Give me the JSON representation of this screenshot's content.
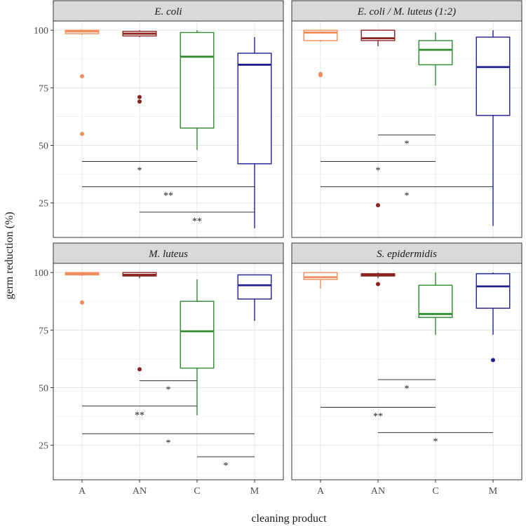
{
  "chart_data": {
    "type": "boxplot",
    "xlabel": "cleaning product",
    "ylabel": "germ reduction (%)",
    "categories": [
      "A",
      "AN",
      "C",
      "M"
    ],
    "colors": {
      "A": "#f28c5b",
      "AN": "#8b2323",
      "C": "#2e8b2e",
      "M": "#1f1f8f"
    },
    "ylim": [
      10,
      104
    ],
    "yticks": [
      25,
      50,
      75,
      100
    ],
    "panels": [
      {
        "title": "E. coli",
        "boxes": [
          {
            "cat": "A",
            "min": 98,
            "q1": 98.5,
            "median": 99.5,
            "q3": 100,
            "max": 100,
            "outliers": [
              80,
              55
            ]
          },
          {
            "cat": "AN",
            "min": 97,
            "q1": 97.5,
            "median": 98.5,
            "q3": 99.5,
            "max": 100,
            "outliers": [
              71,
              69
            ]
          },
          {
            "cat": "C",
            "min": 48,
            "q1": 57.5,
            "median": 88.5,
            "q3": 99,
            "max": 100,
            "outliers": []
          },
          {
            "cat": "M",
            "min": 14,
            "q1": 42,
            "median": 85,
            "q3": 90,
            "max": 97,
            "outliers": []
          }
        ],
        "significance": [
          {
            "from": "A",
            "to": "C",
            "y": 43,
            "label": "*"
          },
          {
            "from": "A",
            "to": "M",
            "y": 32,
            "label": "**"
          },
          {
            "from": "AN",
            "to": "M",
            "y": 21,
            "label": "**"
          }
        ]
      },
      {
        "title": "E. coli / M. luteus (1:2)",
        "boxes": [
          {
            "cat": "A",
            "min": 95,
            "q1": 95.5,
            "median": 99,
            "q3": 100,
            "max": 100,
            "outliers": [
              81,
              80.5
            ]
          },
          {
            "cat": "AN",
            "min": 93,
            "q1": 95.5,
            "median": 96.5,
            "q3": 100,
            "max": 100,
            "outliers": [
              24
            ]
          },
          {
            "cat": "C",
            "min": 76,
            "q1": 85,
            "median": 91.5,
            "q3": 95.5,
            "max": 99,
            "outliers": []
          },
          {
            "cat": "M",
            "min": 15,
            "q1": 63,
            "median": 84,
            "q3": 97,
            "max": 100,
            "outliers": []
          }
        ],
        "significance": [
          {
            "from": "AN",
            "to": "C",
            "y": 54.5,
            "label": "*"
          },
          {
            "from": "A",
            "to": "C",
            "y": 43,
            "label": "*"
          },
          {
            "from": "A",
            "to": "M",
            "y": 32,
            "label": "*"
          }
        ]
      },
      {
        "title": "M. luteus",
        "boxes": [
          {
            "cat": "A",
            "min": 98.5,
            "q1": 99,
            "median": 99.5,
            "q3": 100,
            "max": 100,
            "outliers": [
              87
            ]
          },
          {
            "cat": "AN",
            "min": 97.5,
            "q1": 98.5,
            "median": 99,
            "q3": 100,
            "max": 100,
            "outliers": [
              58
            ]
          },
          {
            "cat": "C",
            "min": 38,
            "q1": 58.5,
            "median": 74.5,
            "q3": 87.5,
            "max": 97,
            "outliers": []
          },
          {
            "cat": "M",
            "min": 79,
            "q1": 88.5,
            "median": 94.5,
            "q3": 99,
            "max": 99,
            "outliers": []
          }
        ],
        "significance": [
          {
            "from": "AN",
            "to": "C",
            "y": 53,
            "label": "*"
          },
          {
            "from": "A",
            "to": "C",
            "y": 42,
            "label": "**"
          },
          {
            "from": "A",
            "to": "M",
            "y": 30,
            "label": "*"
          },
          {
            "from": "C",
            "to": "M",
            "y": 20,
            "label": "*"
          }
        ]
      },
      {
        "title": "S. epidermidis",
        "boxes": [
          {
            "cat": "A",
            "min": 93,
            "q1": 97,
            "median": 98,
            "q3": 100,
            "max": 100,
            "outliers": []
          },
          {
            "cat": "AN",
            "min": 97.5,
            "q1": 98.5,
            "median": 99,
            "q3": 99.5,
            "max": 100,
            "outliers": [
              95
            ]
          },
          {
            "cat": "C",
            "min": 73,
            "q1": 80.5,
            "median": 82,
            "q3": 94.5,
            "max": 100,
            "outliers": []
          },
          {
            "cat": "M",
            "min": 73,
            "q1": 84.5,
            "median": 94,
            "q3": 99.5,
            "max": 100,
            "outliers": [
              62
            ]
          }
        ],
        "significance": [
          {
            "from": "AN",
            "to": "C",
            "y": 53.5,
            "label": "*"
          },
          {
            "from": "A",
            "to": "C",
            "y": 41.5,
            "label": "**"
          },
          {
            "from": "AN",
            "to": "M",
            "y": 30.5,
            "label": "*"
          }
        ]
      }
    ]
  }
}
